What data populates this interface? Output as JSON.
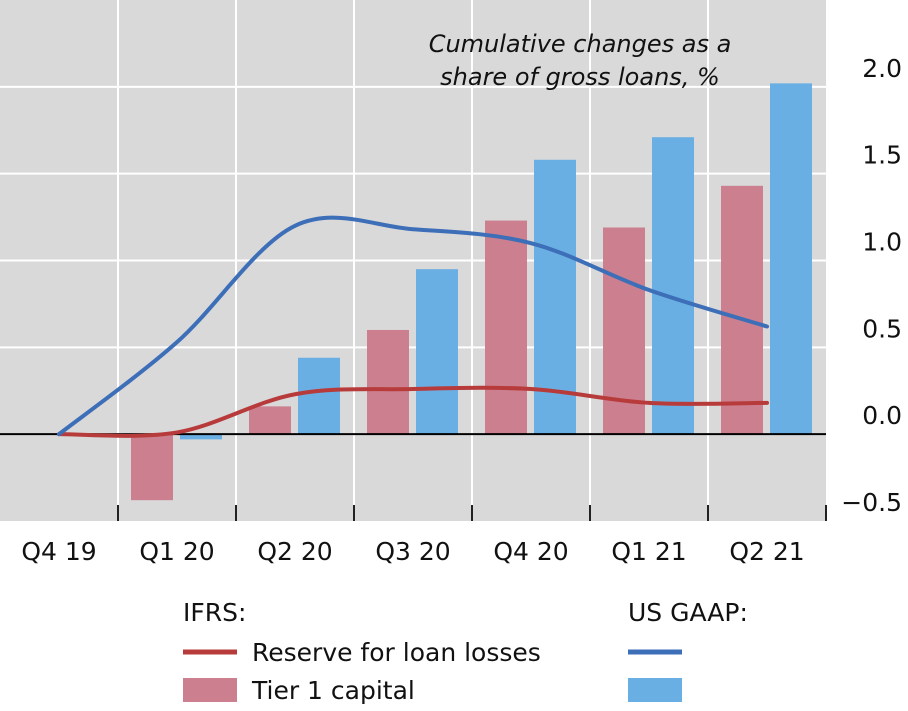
{
  "chart_data": {
    "type": "bar",
    "annotation_lines": [
      "Cumulative changes as a",
      "share of gross loans, %"
    ],
    "categories": [
      "Q4 19",
      "Q1 20",
      "Q2 20",
      "Q3 20",
      "Q4 20",
      "Q1 21",
      "Q2 21"
    ],
    "legend_groups": [
      {
        "label": "IFRS:",
        "series": [
          0,
          1
        ]
      },
      {
        "label": "US GAAP:",
        "series": [
          2,
          3
        ]
      }
    ],
    "series": [
      {
        "name": "Reserve for loan losses",
        "type": "line",
        "color": "#b83b3b",
        "values": [
          0,
          0.01,
          0.23,
          0.26,
          0.26,
          0.18,
          0.18
        ]
      },
      {
        "name": "Tier 1 capital",
        "type": "bar",
        "color": "#cc7f8e",
        "values": [
          null,
          -0.38,
          0.16,
          0.6,
          1.23,
          1.19,
          1.43
        ]
      },
      {
        "type": "line",
        "color": "#3d6eb8",
        "values": [
          0,
          0.53,
          1.2,
          1.18,
          1.1,
          0.83,
          0.62
        ]
      },
      {
        "type": "bar",
        "color": "#6aafe3",
        "values": [
          null,
          -0.03,
          0.44,
          0.95,
          1.58,
          1.71,
          2.02
        ]
      }
    ],
    "ylim": [
      -0.5,
      2.5
    ],
    "yticks": [
      {
        "value": -0.5,
        "label": "−0.5"
      },
      {
        "value": 0,
        "label": "0.0"
      },
      {
        "value": 0.5,
        "label": "0.5"
      },
      {
        "value": 1,
        "label": "1.0"
      },
      1.5,
      {
        "value": 2,
        "label": "2.0"
      }
    ],
    "grid": true,
    "background": "#d9d9d9"
  }
}
